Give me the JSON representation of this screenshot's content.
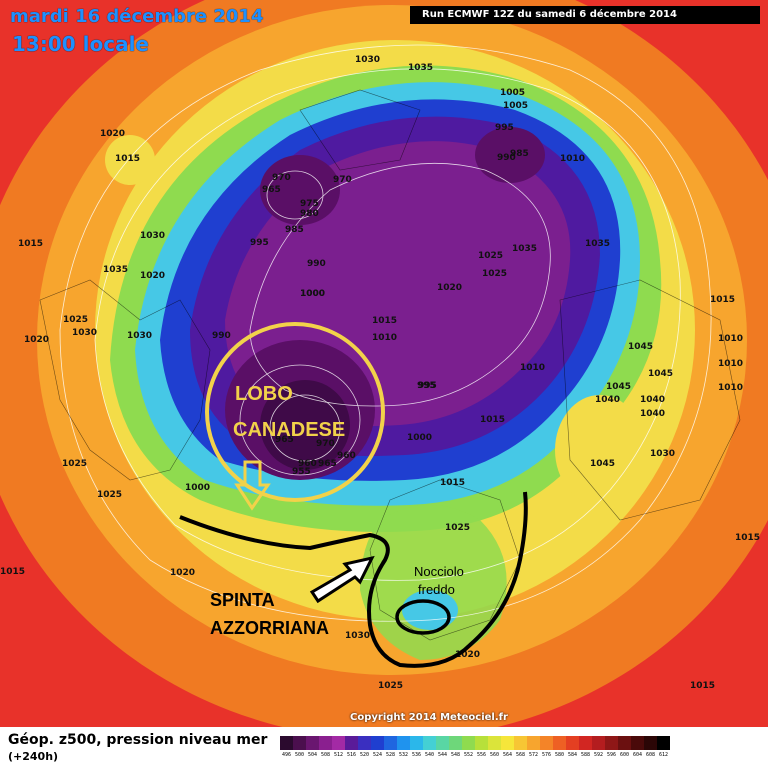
{
  "header": {
    "date": "mardi 16 décembre 2014",
    "time": "13:00 locale",
    "run": "Run ECMWF 12Z du samedi 6 décembre 2014"
  },
  "annotations": {
    "lobo_line1": "LOBO",
    "lobo_line2": "CANADESE",
    "spinta_line1": "SPINTA",
    "spinta_line2": "AZZORRIANA",
    "nocciolo_line1": "Nocciolo",
    "nocciolo_line2": "freddo"
  },
  "pressure_labels": [
    "1030",
    "1035",
    "1005",
    "1005",
    "995",
    "990",
    "985",
    "1010",
    "1020",
    "1015",
    "970",
    "970",
    "965",
    "975",
    "980",
    "985",
    "995",
    "990",
    "1000",
    "990",
    "1035",
    "1025",
    "1025",
    "1035",
    "1020",
    "1015",
    "1010",
    "1010",
    "995",
    "1030",
    "1030",
    "1035",
    "1020",
    "1025",
    "1030",
    "1020",
    "1015",
    "1015",
    "1045",
    "1045",
    "1045",
    "1040",
    "1040",
    "1040",
    "1030",
    "1045",
    "1010",
    "1010",
    "1010",
    "1000",
    "1015",
    "1015",
    "1025",
    "1020",
    "1030",
    "1025",
    "1015",
    "1015",
    "995",
    "965",
    "960",
    "955",
    "970",
    "965",
    "960",
    "1000",
    "1000",
    "1025",
    "1025",
    "1020",
    "1015"
  ],
  "colors": {
    "background_low": "#e8322a",
    "ring_orange": "#f7901e",
    "ring_yellow": "#f7e04a",
    "ring_green": "#5fd06a",
    "ring_cyan": "#46c8e6",
    "ring_blue": "#1f3fd0",
    "core_purple": "#7b1f8f",
    "annotation_yellow": "#f2d24a"
  },
  "footer": {
    "caption": "Géop. z500, pression niveau mer",
    "lead": "(+240h)",
    "copyright": "Copyright 2014 Meteociel.fr",
    "scale_colors": [
      "#2b0a2e",
      "#4b0f4e",
      "#6a1670",
      "#8a1f8f",
      "#a32aa5",
      "#5a1b99",
      "#3a2fc0",
      "#1f3fd0",
      "#1f66e0",
      "#1f93ee",
      "#2bb7ea",
      "#44d0d4",
      "#59d6a4",
      "#6ed77a",
      "#8fdb4f",
      "#b7e03a",
      "#dbe43a",
      "#f6e63a",
      "#f7c634",
      "#f7a52e",
      "#f48428",
      "#ee6024",
      "#e43f22",
      "#d22622",
      "#b41d1f",
      "#8f1717",
      "#6b1010",
      "#4a0a0a",
      "#2b0606",
      "#000000"
    ],
    "scale_labels": [
      "496",
      "500",
      "504",
      "508",
      "512",
      "516",
      "520",
      "524",
      "528",
      "532",
      "536",
      "540",
      "544",
      "548",
      "552",
      "556",
      "560",
      "564",
      "568",
      "572",
      "576",
      "580",
      "584",
      "588",
      "592",
      "596",
      "600",
      "604",
      "608",
      "612"
    ]
  }
}
